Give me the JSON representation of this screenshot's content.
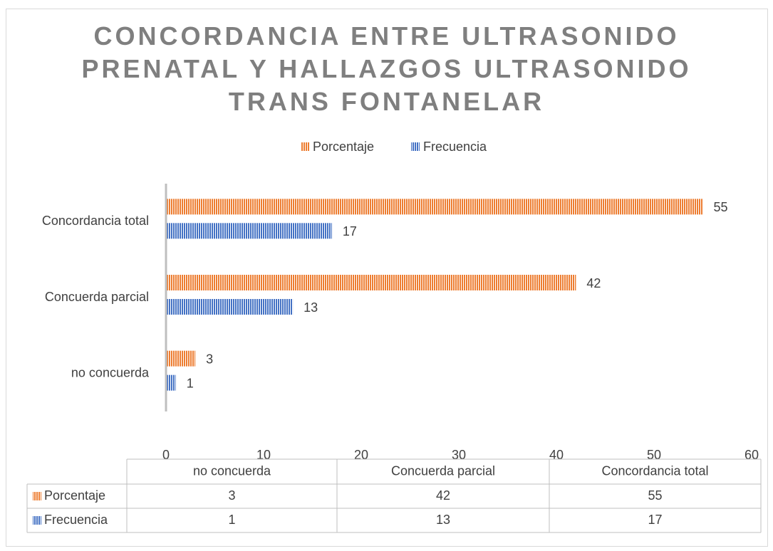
{
  "chart_data": {
    "type": "bar",
    "orientation": "horizontal",
    "title": "CONCORDANCIA ENTRE ULTRASONIDO PRENATAL Y HALLAZGOS ULTRASONIDO TRANS FONTANELAR",
    "categories": [
      "no concuerda",
      "Concuerda parcial",
      "Concordancia total"
    ],
    "series": [
      {
        "name": "Porcentaje",
        "color": "#ED7D31",
        "values": [
          3,
          42,
          55
        ]
      },
      {
        "name": "Frecuencia",
        "color": "#4472C4",
        "values": [
          1,
          13,
          17
        ]
      }
    ],
    "xlim": [
      0,
      60
    ],
    "xticks": [
      0,
      10,
      20,
      30,
      40,
      50,
      60
    ],
    "grid": false,
    "legend": "top",
    "data_table": true
  }
}
